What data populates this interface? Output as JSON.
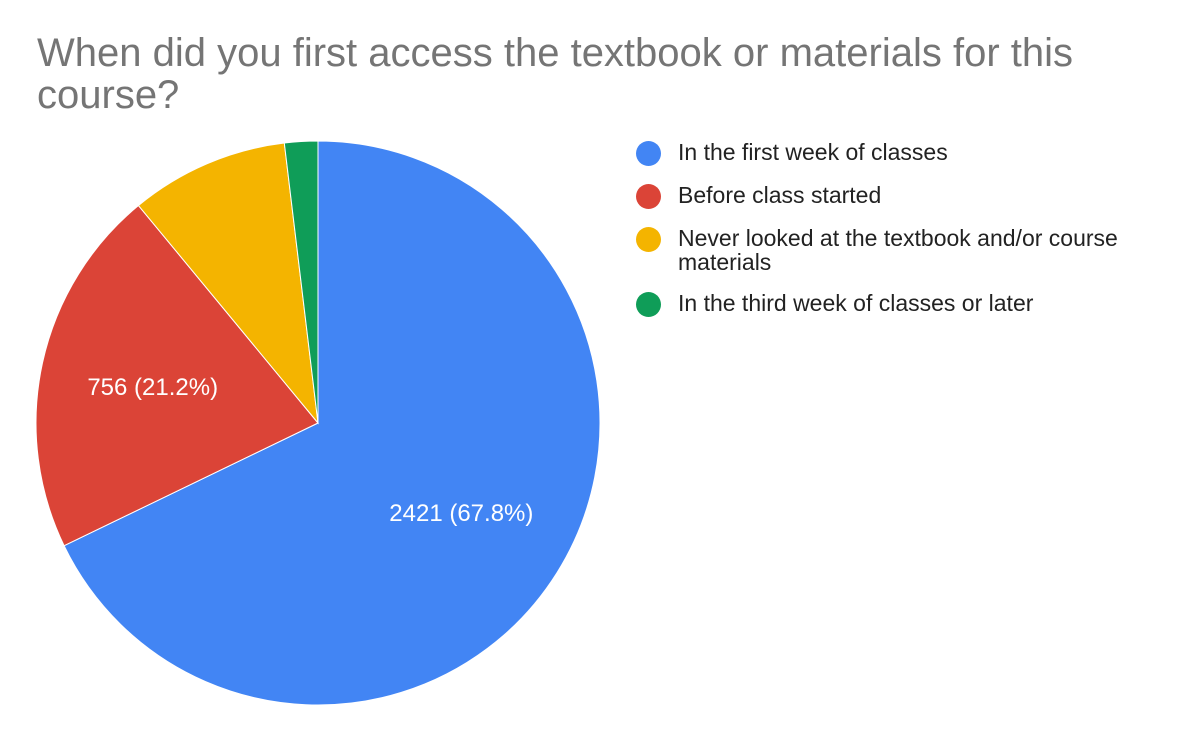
{
  "chart_data": {
    "type": "pie",
    "title": "When did you first access the textbook or materials for this course?",
    "slices": [
      {
        "name": "In the first week of classes",
        "value": 2421,
        "percent": 67.8,
        "color": "#4285f4",
        "data_label": "2421 (67.8%)"
      },
      {
        "name": "Before class started",
        "value": 756,
        "percent": 21.2,
        "color": "#db4437",
        "data_label": "756 (21.2%)"
      },
      {
        "name": "Never looked at the textbook and/or course materials",
        "value": 324,
        "percent": 9.1,
        "color": "#f4b400",
        "data_label": ""
      },
      {
        "name": "In the third week of classes or later",
        "value": 68,
        "percent": 1.9,
        "color": "#0f9d58",
        "data_label": ""
      }
    ],
    "legend_position": "right"
  }
}
